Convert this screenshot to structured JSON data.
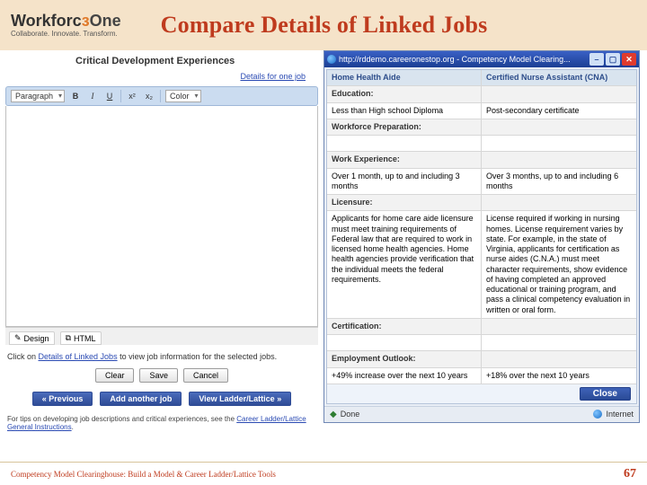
{
  "header": {
    "logo_word_a": "Workforc",
    "logo_word_b": "One",
    "logo_tagline": "Collaborate. Innovate. Transform.",
    "title": "Compare Details of Linked Jobs"
  },
  "left": {
    "panel_title": "Critical Development Experiences",
    "details_link": "Details for one job",
    "toolbar": {
      "para": "Paragraph",
      "color": "Color"
    },
    "modes": {
      "design": "Design",
      "html": "HTML"
    },
    "hint_pre": "Click on ",
    "hint_link": "Details of Linked Jobs",
    "hint_post": " to view job information for the selected jobs.",
    "btn_clear": "Clear",
    "btn_save": "Save",
    "btn_cancel": "Cancel",
    "btn_prev": "« Previous",
    "btn_add": "Add another job",
    "btn_view": "View Ladder/Lattice »",
    "tip_pre": "For tips on developing job descriptions and critical experiences, see the ",
    "tip_link": "Career Ladder/Lattice General Instructions",
    "tip_post": "."
  },
  "popup": {
    "title": "http://rddemo.careeronestop.org - Competency Model Clearing...",
    "head_l": "Home Health Aide",
    "head_r": "Certified Nurse Assistant (CNA)",
    "sec_education": "Education:",
    "edu_l": "Less than High school Diploma",
    "edu_r": "Post-secondary certificate",
    "sec_workforce": "Workforce Preparation:",
    "sec_workexp": "Work Experience:",
    "we_l": "Over 1 month, up to and including 3 months",
    "we_r": "Over 3 months, up to and including 6 months",
    "sec_lic": "Licensure:",
    "lic_l": "Applicants for home care aide licensure must meet training requirements of Federal law that are required to work in licensed home health agencies. Home health agencies provide verification that the individual meets the federal requirements.",
    "lic_r": "License required if working in nursing homes. License requirement varies by state. For example, in the state of Virginia, applicants for certification as nurse aides (C.N.A.) must meet character requirements, show evidence of having completed an approved educational or training program, and pass a clinical competency evaluation in written or oral form.",
    "sec_cert": "Certification:",
    "sec_outlook": "Employment Outlook:",
    "out_l": "+49% increase over the next 10 years",
    "out_r": "+18% over the next 10 years",
    "btn_close": "Close",
    "status_done": "Done",
    "status_zone": "Internet"
  },
  "footer": {
    "text": "Competency Model Clearinghouse: Build a Model & Career Ladder/Lattice Tools",
    "page": "67"
  }
}
